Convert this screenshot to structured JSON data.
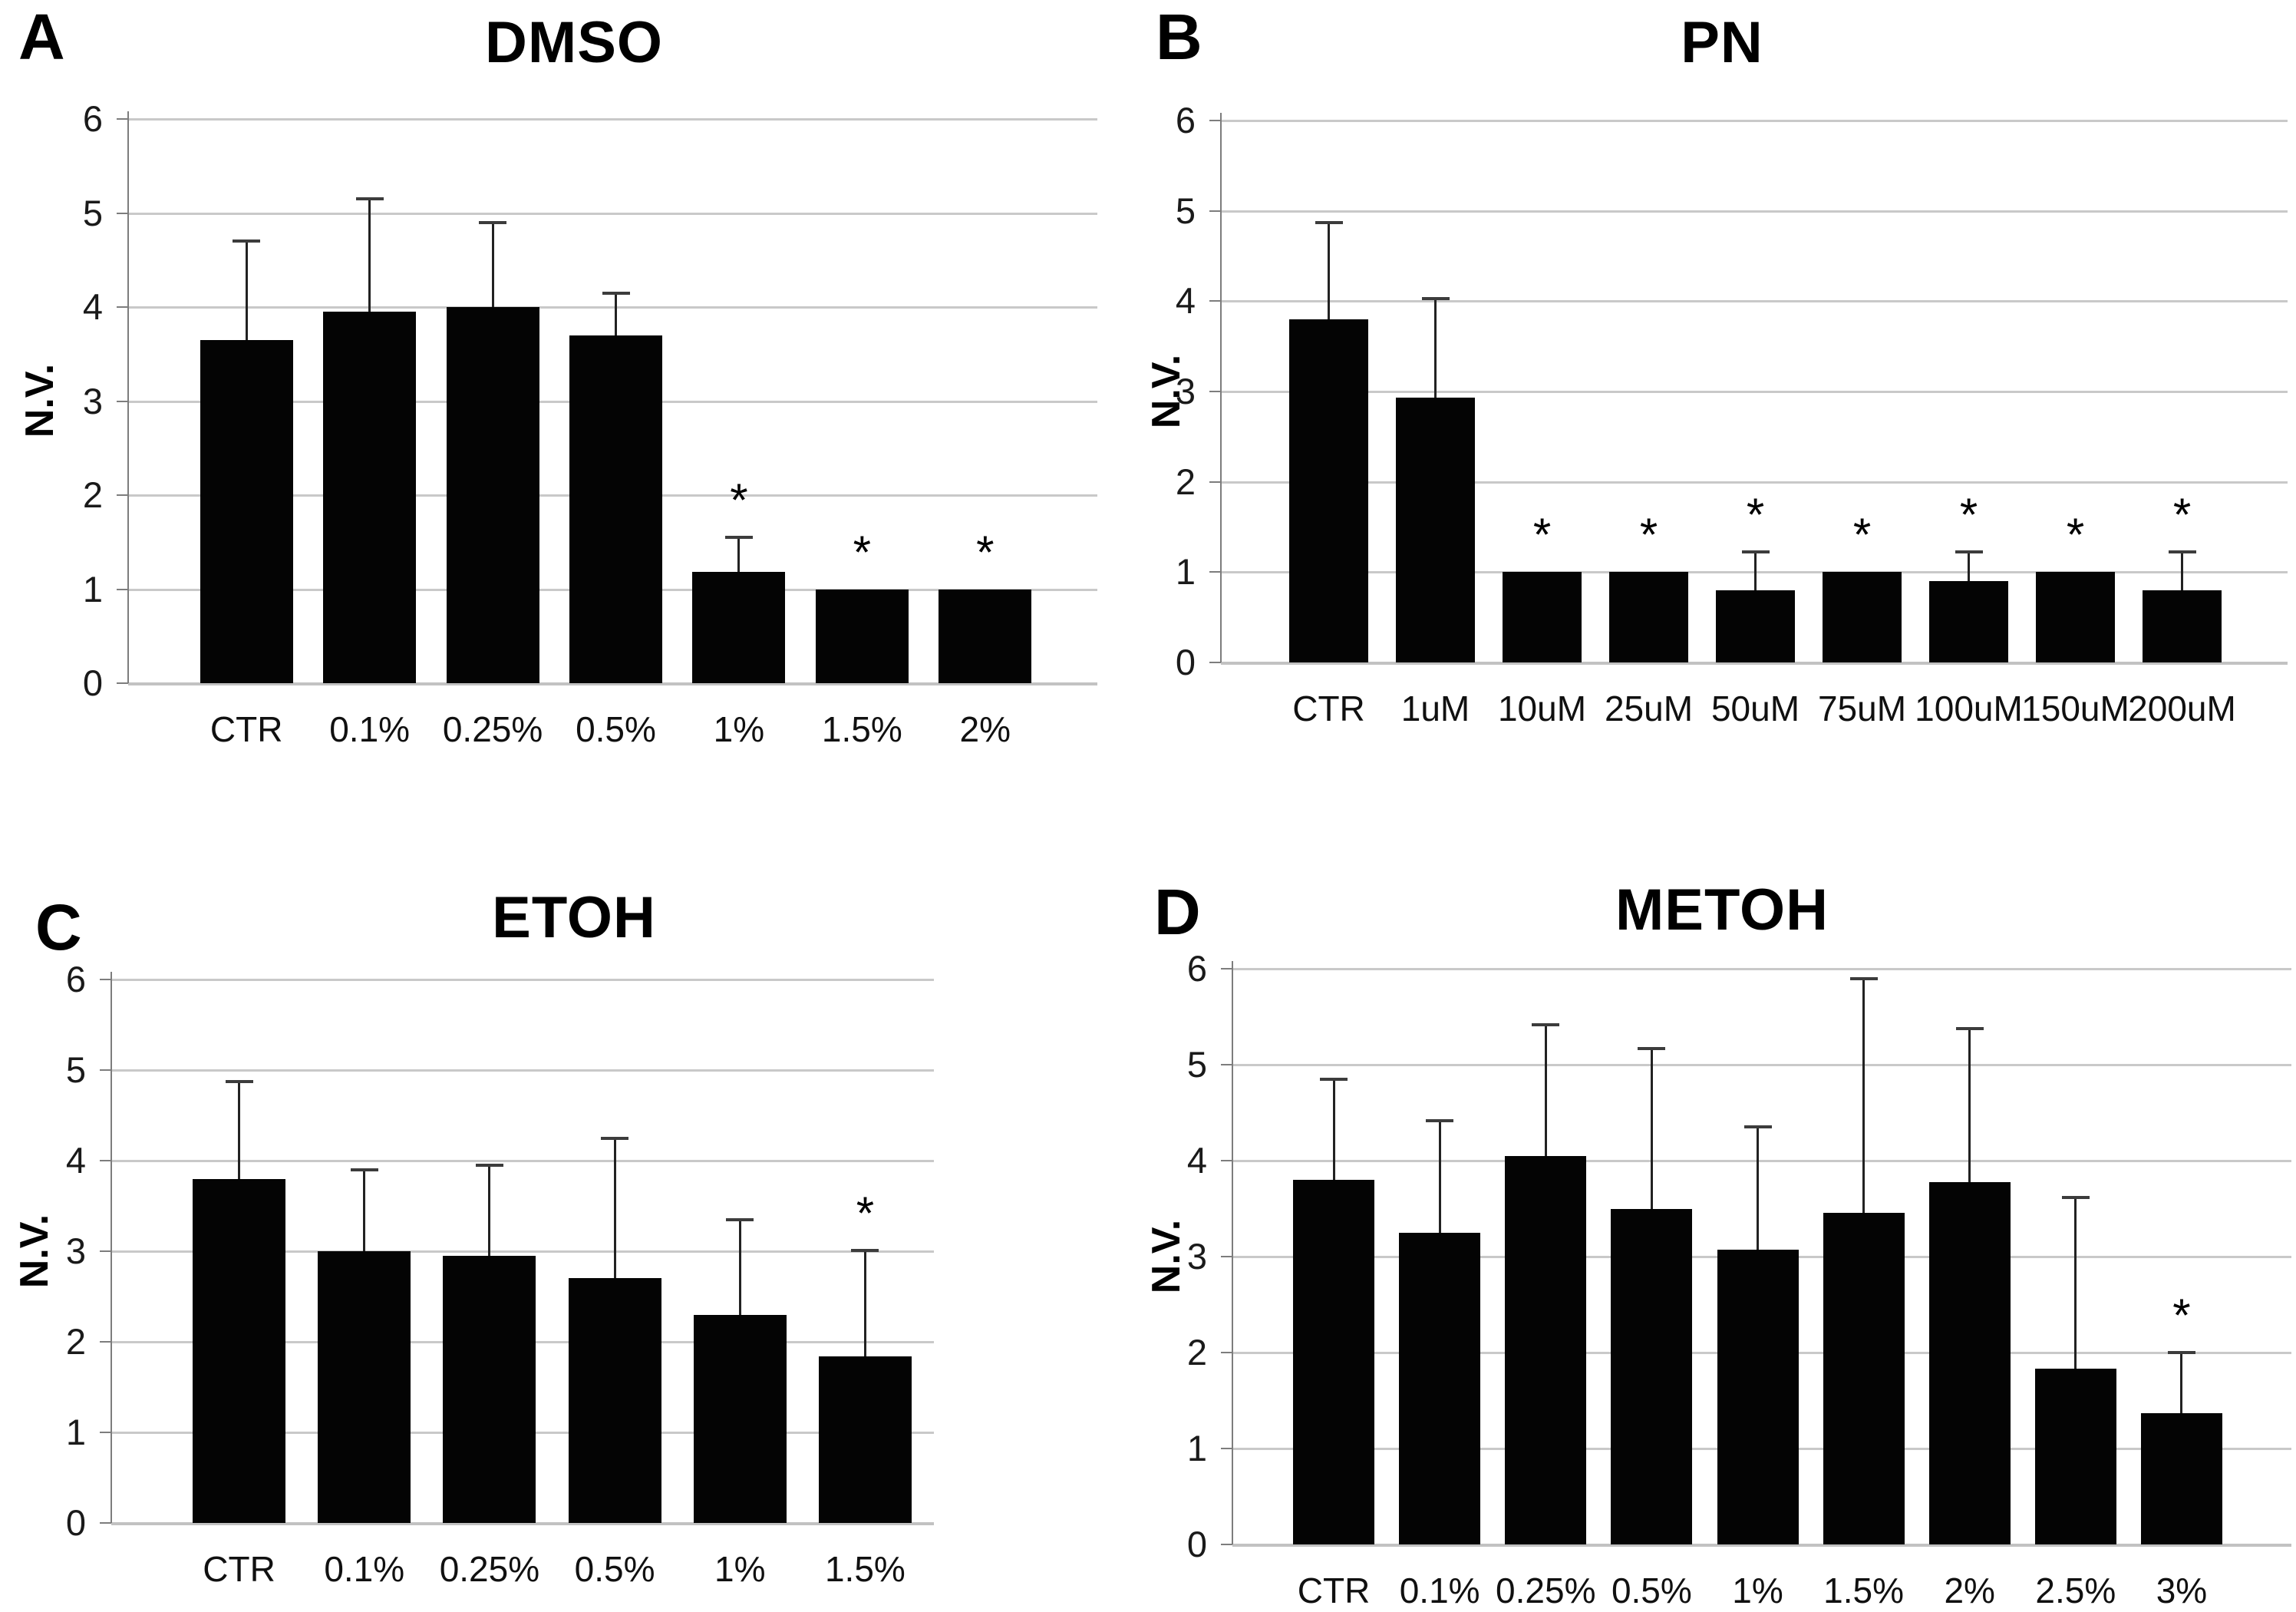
{
  "figure": {
    "background": "#ffffff",
    "significance_note_marker": "*"
  },
  "chart_data": [
    {
      "type": "bar",
      "panel_letter": "A",
      "title": "DMSO",
      "xlabel": "",
      "ylabel": "N.V.",
      "ylim": [
        0,
        6
      ],
      "yticks": [
        0,
        1,
        2,
        3,
        4,
        5,
        6
      ],
      "grid": "horizontal",
      "legend": "none",
      "bar_color": "#000000",
      "categories": [
        "CTR",
        "0.1%",
        "0.25%",
        "0.5%",
        "1%",
        "1.5%",
        "2%"
      ],
      "values": [
        3.65,
        3.95,
        4.0,
        3.7,
        1.18,
        1.0,
        1.0
      ],
      "errors_upper": [
        1.05,
        1.2,
        0.9,
        0.45,
        0.37,
        0,
        0
      ],
      "significant": [
        false,
        false,
        false,
        false,
        true,
        true,
        true
      ],
      "significance_marker": "*"
    },
    {
      "type": "bar",
      "panel_letter": "B",
      "title": "PN",
      "xlabel": "",
      "ylabel": "N.V.",
      "ylim": [
        0,
        6
      ],
      "yticks": [
        0,
        1,
        2,
        3,
        4,
        5,
        6
      ],
      "grid": "horizontal",
      "legend": "none",
      "bar_color": "#000000",
      "categories": [
        "CTR",
        "1uM",
        "10uM",
        "25uM",
        "50uM",
        "75uM",
        "100uM",
        "150uM",
        "200uM"
      ],
      "values": [
        3.8,
        2.93,
        1.0,
        1.0,
        0.8,
        1.0,
        0.9,
        1.0,
        0.8
      ],
      "errors_upper": [
        1.07,
        1.1,
        0,
        0,
        0.42,
        0,
        0.32,
        0,
        0.42
      ],
      "significant": [
        false,
        false,
        true,
        true,
        true,
        true,
        true,
        true,
        true
      ],
      "significance_marker": "*"
    },
    {
      "type": "bar",
      "panel_letter": "C",
      "title": "ETOH",
      "xlabel": "",
      "ylabel": "N.V.",
      "ylim": [
        0,
        6
      ],
      "yticks": [
        0,
        1,
        2,
        3,
        4,
        5,
        6
      ],
      "grid": "horizontal",
      "legend": "none",
      "bar_color": "#000000",
      "categories": [
        "CTR",
        "0.1%",
        "0.25%",
        "0.5%",
        "1%",
        "1.5%"
      ],
      "values": [
        3.8,
        3.0,
        2.95,
        2.7,
        2.3,
        1.84
      ],
      "errors_upper": [
        1.07,
        0.9,
        1.0,
        1.55,
        1.05,
        1.17
      ],
      "significant": [
        false,
        false,
        false,
        false,
        false,
        true
      ],
      "significance_marker": "*"
    },
    {
      "type": "bar",
      "panel_letter": "D",
      "title": "METOH",
      "xlabel": "",
      "ylabel": "N.V.",
      "ylim": [
        0,
        6
      ],
      "yticks": [
        0,
        1,
        2,
        3,
        4,
        5,
        6
      ],
      "grid": "horizontal",
      "legend": "none",
      "bar_color": "#000000",
      "categories": [
        "CTR",
        "0.1%",
        "0.25%",
        "0.5%",
        "1%",
        "1.5%",
        "2%",
        "2.5%",
        "3%"
      ],
      "values": [
        3.8,
        3.25,
        4.05,
        3.5,
        3.07,
        3.46,
        3.78,
        1.83,
        1.37
      ],
      "errors_upper": [
        1.05,
        1.17,
        1.37,
        1.67,
        1.28,
        2.44,
        1.6,
        1.79,
        0.63
      ],
      "significant": [
        false,
        false,
        false,
        false,
        false,
        false,
        false,
        false,
        true
      ],
      "significance_marker": "*"
    }
  ]
}
